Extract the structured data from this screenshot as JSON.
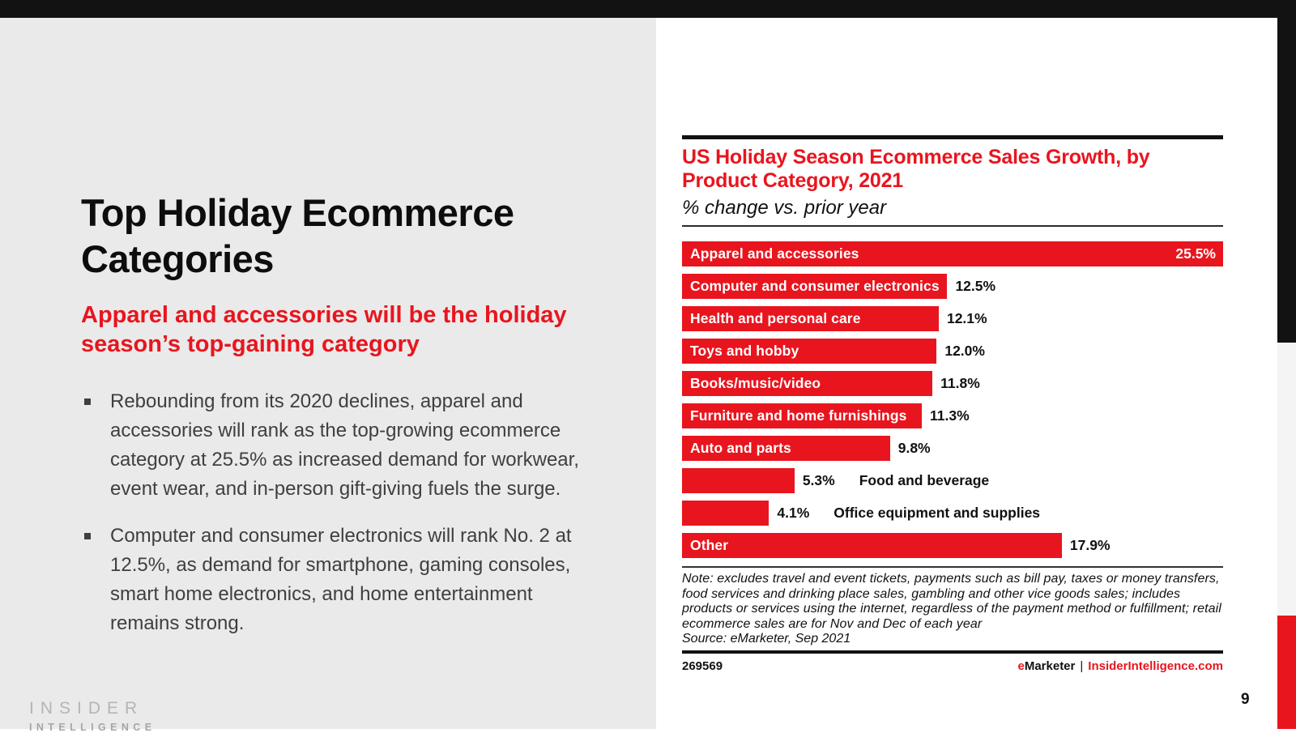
{
  "page": {
    "page_number": "9"
  },
  "left": {
    "title": "Top Holiday Ecommerce Categories",
    "subtitle": "Apparel and accessories will be the holiday season’s top-gaining category",
    "bullets": [
      "Rebounding from its 2020 declines, apparel and accessories will rank as the top-growing ecommerce category at 25.5% as increased demand for workwear, event wear, and in-person gift-giving fuels the surge.",
      "Computer and consumer electronics will rank No. 2 at 12.5%, as demand for smartphone, gaming consoles, smart home electronics, and home entertainment remains strong."
    ],
    "logo": {
      "line1": "INSIDER",
      "line2": "INTELLIGENCE"
    }
  },
  "chart": {
    "title_line1": "US Holiday Season Ecommerce Sales Growth, by",
    "title_line2": "Product Category, 2021",
    "subtitle": "% change vs. prior year",
    "note": "Note: excludes travel and event tickets, payments such as bill pay, taxes or money transfers, food services and drinking place sales, gambling and other vice goods sales; includes products or services using the internet, regardless of the payment method or fulfillment; retail ecommerce sales are for Nov and Dec of each year",
    "source": "Source: eMarketer, Sep 2021",
    "footer_id": "269569",
    "brand": {
      "e": "e",
      "marketer": "Marketer",
      "sep": "|",
      "site": "InsiderIntelligence.com"
    }
  },
  "chart_data": {
    "type": "bar",
    "orientation": "horizontal",
    "title": "US Holiday Season Ecommerce Sales Growth, by Product Category, 2021",
    "subtitle": "% change vs. prior year",
    "categories": [
      "Apparel and accessories",
      "Computer and consumer electronics",
      "Health and personal care",
      "Toys and hobby",
      "Books/music/video",
      "Furniture and home furnishings",
      "Auto and parts",
      "Food and beverage",
      "Office equipment and supplies",
      "Other"
    ],
    "values": [
      25.5,
      12.5,
      12.1,
      12.0,
      11.8,
      11.3,
      9.8,
      5.3,
      4.1,
      17.9
    ],
    "value_labels": [
      "25.5%",
      "12.5%",
      "12.1%",
      "12.0%",
      "11.8%",
      "11.3%",
      "9.8%",
      "5.3%",
      "4.1%",
      "17.9%"
    ],
    "label_outside": [
      false,
      false,
      false,
      false,
      false,
      false,
      false,
      true,
      true,
      false
    ],
    "value_inside": [
      true,
      false,
      false,
      false,
      false,
      false,
      false,
      false,
      false,
      false
    ],
    "xlim": [
      0,
      25.5
    ],
    "grid": false,
    "legend": "none",
    "bar_color": "#e8151e"
  },
  "colors": {
    "accent_red": "#e8151e",
    "left_panel_bg": "#eaeaea",
    "topbar_black": "#121212",
    "strip_gray": "#f4f4f4",
    "body_text": "#3f3f3f"
  }
}
